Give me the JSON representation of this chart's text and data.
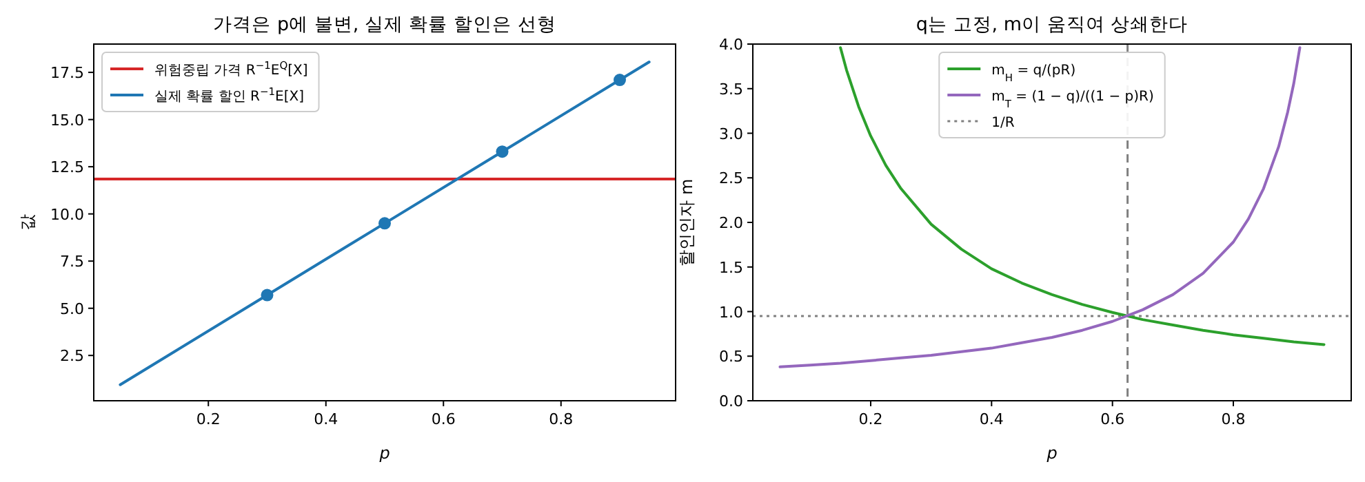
{
  "chart_data": [
    {
      "type": "line",
      "title": "가격은 p에 불변, 실제 확률 할인은 선형",
      "xlabel": "p",
      "ylabel": "값",
      "xlim": [
        0.005,
        0.995
      ],
      "ylim": [
        0.1,
        19.0
      ],
      "xticks": [
        0.2,
        0.4,
        0.6,
        0.8
      ],
      "yticks": [
        2.5,
        {
          "value": 5,
          "label": "5.0"
        },
        7.5,
        {
          "value": 10,
          "label": "10.0"
        },
        12.5,
        {
          "value": 15,
          "label": "15.0"
        },
        17.5
      ],
      "legend": "top left",
      "series": [
        {
          "name": "위험중립 가격 R$^{−1}$E$^{Q}$[X]",
          "color": "#d62728",
          "x": [
            0.005,
            0.995
          ],
          "values": [
            11.85,
            11.85
          ]
        },
        {
          "name": "실제 확률 할인 R$^{−1}$E[X]",
          "color": "#1f77b4",
          "x": [
            0.05,
            0.3,
            0.5,
            0.7,
            0.9,
            0.95
          ],
          "values": [
            0.95,
            5.7,
            9.5,
            13.3,
            17.1,
            18.05
          ]
        },
        {
          "color": "#1f77b4",
          "type": "scatter",
          "marker": "circle",
          "x": [
            0.3,
            0.5,
            0.7,
            0.9
          ],
          "values": [
            5.7,
            9.5,
            13.3,
            17.1
          ]
        }
      ]
    },
    {
      "type": "line",
      "title": "q는 고정, m이 움직여 상쇄한다",
      "xlabel": "p",
      "ylabel": "할인인자 m",
      "xlim": [
        0.005,
        0.995
      ],
      "ylim": [
        0,
        4
      ],
      "xticks": [
        0.2,
        0.4,
        0.6,
        0.8
      ],
      "yticks": [
        {
          "value": 0,
          "label": "0.0"
        },
        0.5,
        {
          "value": 1,
          "label": "1.0"
        },
        1.5,
        {
          "value": 2,
          "label": "2.0"
        },
        2.5,
        {
          "value": 3,
          "label": "3.0"
        },
        3.5,
        {
          "value": 4,
          "label": "4.0"
        }
      ],
      "legend": "top",
      "ref_lines": [
        {
          "axis": "y",
          "value": 0.95,
          "label": "1/R",
          "color": "#808080",
          "line_style": "dotted"
        },
        {
          "axis": "x",
          "value": 0.625,
          "color": "#808080",
          "line_style": "dashed"
        }
      ],
      "series": [
        {
          "name": "m$_{H}$ = q/(pR)",
          "color": "#2ca02c",
          "x": [
            0.15,
            0.16,
            0.18,
            0.2,
            0.225,
            0.25,
            0.3,
            0.35,
            0.4,
            0.45,
            0.5,
            0.55,
            0.6,
            0.65,
            0.7,
            0.75,
            0.8,
            0.85,
            0.9,
            0.95
          ],
          "values": [
            3.96,
            3.71,
            3.3,
            2.97,
            2.64,
            2.38,
            1.98,
            1.7,
            1.48,
            1.32,
            1.19,
            1.08,
            0.99,
            0.91,
            0.85,
            0.79,
            0.74,
            0.7,
            0.66,
            0.63
          ]
        },
        {
          "name": "m$_{T}$ = (1 − q)/((1 − p)R)",
          "color": "#9467bd",
          "x": [
            0.05,
            0.1,
            0.15,
            0.2,
            0.25,
            0.3,
            0.35,
            0.4,
            0.45,
            0.5,
            0.55,
            0.6,
            0.65,
            0.7,
            0.75,
            0.8,
            0.825,
            0.85,
            0.875,
            0.89,
            0.9,
            0.91
          ],
          "values": [
            0.38,
            0.4,
            0.42,
            0.45,
            0.48,
            0.51,
            0.55,
            0.59,
            0.65,
            0.71,
            0.79,
            0.89,
            1.02,
            1.19,
            1.43,
            1.78,
            2.04,
            2.38,
            2.85,
            3.24,
            3.56,
            3.96
          ]
        }
      ]
    }
  ]
}
